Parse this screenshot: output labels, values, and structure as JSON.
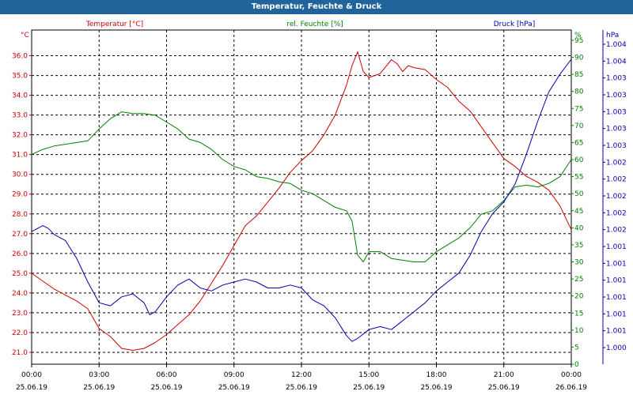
{
  "window": {
    "title": "Temperatur, Feuchte & Druck"
  },
  "chart_data": {
    "type": "line",
    "title": "Temperatur, Feuchte & Druck",
    "grid": true,
    "x_ticks": [
      {
        "time": "00:00",
        "date": "25.06.19"
      },
      {
        "time": "03:00",
        "date": "25.06.19"
      },
      {
        "time": "06:00",
        "date": "25.06.19"
      },
      {
        "time": "09:00",
        "date": "25.06.19"
      },
      {
        "time": "12:00",
        "date": "25.06.19"
      },
      {
        "time": "15:00",
        "date": "25.06.19"
      },
      {
        "time": "18:00",
        "date": "25.06.19"
      },
      {
        "time": "21:00",
        "date": "25.06.19"
      },
      {
        "time": "00:00",
        "date": "26.06.19"
      }
    ],
    "xlim_hours": [
      0,
      24
    ],
    "axes": {
      "temperature": {
        "unit": "°C",
        "label": "Temperatur [°C]",
        "color": "#cc0000",
        "ylim": [
          20.4,
          37.3
        ],
        "ticks": [
          "21.0",
          "22.0",
          "23.0",
          "24.0",
          "25.0",
          "26.0",
          "27.0",
          "28.0",
          "29.0",
          "30.0",
          "31.0",
          "32.0",
          "33.0",
          "34.0",
          "35.0",
          "36.0"
        ]
      },
      "humidity": {
        "unit": "%",
        "label": "rel. Feuchte [%]",
        "color": "#008000",
        "ylim": [
          0,
          98
        ],
        "ticks": [
          "0",
          "5",
          "10",
          "15",
          "20",
          "25",
          "30",
          "35",
          "40",
          "45",
          "50",
          "55",
          "60",
          "65",
          "70",
          "75",
          "80",
          "85",
          "90",
          "95"
        ]
      },
      "pressure": {
        "unit": "hPa",
        "label": "Druck [hPa]",
        "color": "#0000aa",
        "tick_labels": [
          "1.000",
          "1.001",
          "1.001",
          "1.001",
          "1.001",
          "1.001",
          "1.001",
          "1.002",
          "1.002",
          "1.002",
          "1.002",
          "1.002",
          "1.003",
          "1.003",
          "1.003",
          "1.003",
          "1.003",
          "1.004",
          "1.004"
        ]
      }
    },
    "series": [
      {
        "name": "Temperatur [°C]",
        "axis": "temperature",
        "color": "#cc0000",
        "x": [
          0,
          0.5,
          1,
          1.5,
          2,
          2.5,
          3,
          3.5,
          4,
          4.5,
          5,
          5.5,
          6,
          6.5,
          7,
          7.5,
          8,
          8.5,
          9,
          9.5,
          10,
          10.5,
          11,
          11.5,
          12,
          12.5,
          13,
          13.5,
          14,
          14.25,
          14.5,
          14.75,
          15,
          15.5,
          16,
          16.25,
          16.5,
          16.75,
          17,
          17.5,
          18,
          18.5,
          19,
          19.5,
          20,
          20.5,
          21,
          21.5,
          22,
          22.5,
          23,
          23.5,
          24
        ],
        "y": [
          25.0,
          24.6,
          24.2,
          23.9,
          23.6,
          23.2,
          22.2,
          21.8,
          21.2,
          21.1,
          21.2,
          21.5,
          21.9,
          22.4,
          22.9,
          23.6,
          24.5,
          25.4,
          26.4,
          27.4,
          27.9,
          28.6,
          29.3,
          30.1,
          30.7,
          31.2,
          32.0,
          33.0,
          34.5,
          35.5,
          36.2,
          35.2,
          34.9,
          35.1,
          35.8,
          35.6,
          35.2,
          35.5,
          35.4,
          35.3,
          34.8,
          34.4,
          33.7,
          33.2,
          32.4,
          31.6,
          30.8,
          30.4,
          29.9,
          29.6,
          29.2,
          28.4,
          27.2
        ]
      },
      {
        "name": "rel. Feuchte [%]",
        "axis": "humidity",
        "color": "#008000",
        "x": [
          0,
          0.5,
          1,
          1.5,
          2,
          2.5,
          3,
          3.5,
          4,
          4.5,
          5,
          5.5,
          6,
          6.5,
          7,
          7.5,
          8,
          8.5,
          9,
          9.5,
          10,
          10.5,
          11,
          11.5,
          12,
          12.5,
          13,
          13.5,
          14,
          14.25,
          14.5,
          14.75,
          15,
          15.5,
          16,
          16.5,
          17,
          17.5,
          18,
          18.5,
          19,
          19.5,
          20,
          20.5,
          21,
          21.5,
          22,
          22.5,
          23,
          23.5,
          24
        ],
        "y": [
          61.5,
          63,
          64,
          64.5,
          65,
          65.5,
          69,
          72,
          74,
          73.5,
          73.5,
          73,
          71,
          69,
          66,
          65,
          63,
          60,
          58,
          57,
          55,
          54.5,
          53.5,
          53,
          51,
          50,
          48,
          46,
          45,
          42,
          32,
          30,
          33,
          33,
          31,
          30.5,
          30,
          30,
          33,
          35,
          37,
          40,
          44,
          45,
          48,
          52,
          52.5,
          52,
          53,
          55,
          60
        ]
      },
      {
        "name": "Druck [hPa]",
        "axis": "pressure",
        "color": "#0000aa",
        "x": [
          0,
          0.25,
          0.5,
          0.75,
          1,
          1.5,
          2,
          2.5,
          3,
          3.5,
          4,
          4.5,
          5,
          5.25,
          5.5,
          6,
          6.5,
          7,
          7.5,
          8,
          8.5,
          9,
          9.5,
          10,
          10.5,
          11,
          11.5,
          12,
          12.5,
          13,
          13.5,
          14,
          14.25,
          14.5,
          15,
          15.5,
          16,
          16.5,
          17,
          17.5,
          18,
          18.5,
          19,
          19.5,
          20,
          20.5,
          21,
          21.5,
          22,
          22.5,
          23,
          23.5,
          24
        ],
        "p": [
          0.42,
          0.43,
          0.44,
          0.43,
          0.41,
          0.39,
          0.33,
          0.25,
          0.18,
          0.17,
          0.2,
          0.21,
          0.18,
          0.14,
          0.15,
          0.2,
          0.24,
          0.26,
          0.23,
          0.22,
          0.24,
          0.25,
          0.26,
          0.25,
          0.23,
          0.23,
          0.24,
          0.23,
          0.19,
          0.17,
          0.13,
          0.07,
          0.05,
          0.06,
          0.09,
          0.1,
          0.09,
          0.12,
          0.15,
          0.18,
          0.22,
          0.25,
          0.28,
          0.34,
          0.42,
          0.48,
          0.52,
          0.58,
          0.68,
          0.79,
          0.89,
          0.95,
          1.0
        ]
      }
    ]
  }
}
